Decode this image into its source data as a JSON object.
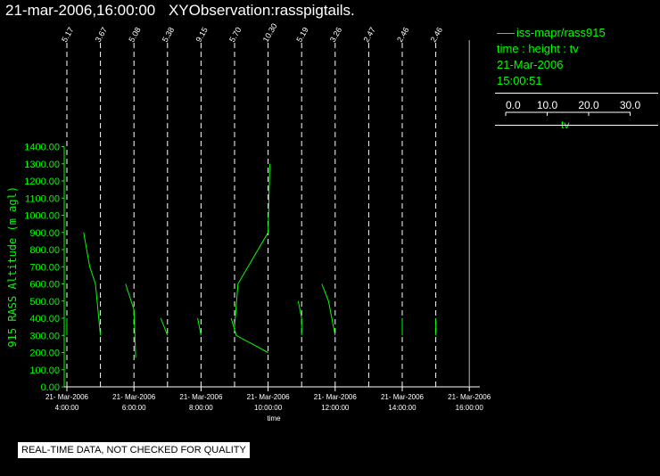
{
  "header": {
    "datetime": "21-mar-2006,16:00:00",
    "observation": "XYObservation:rasspigtails."
  },
  "legend": {
    "series_label": "iss-mapr/rass915",
    "axes": "time : height : tv",
    "date": "21-Mar-2006",
    "time": "15:00:51",
    "scale_ticks": [
      "0.0",
      "10.0",
      "20.0",
      "30.0"
    ],
    "scale_label": "tv"
  },
  "footer": {
    "quality_note": "REAL-TIME DATA, NOT CHECKED FOR QUALITY"
  },
  "colors": {
    "series": "#00ff00",
    "axis": "#ffffff",
    "background": "#000000"
  },
  "chart_data": {
    "type": "line",
    "ylabel": "915 RASS Altitude (m agl)",
    "xlabel": "time",
    "ylim": [
      0,
      1400
    ],
    "y_ticks": [
      "0.00",
      "100.00",
      "200.00",
      "300.00",
      "400.00",
      "500.00",
      "600.00",
      "700.00",
      "800.00",
      "900.00",
      "1000.00",
      "1100.00",
      "1200.00",
      "1300.00",
      "1400.00"
    ],
    "x_range_hours": [
      3,
      16
    ],
    "x_ticks": [
      {
        "hour": 4,
        "date": "21- Mar-2006",
        "time": "4:00:00"
      },
      {
        "hour": 6,
        "date": "21- Mar-2006",
        "time": "6:00:00"
      },
      {
        "hour": 8,
        "date": "21- Mar-2006",
        "time": "8:00:00"
      },
      {
        "hour": 10,
        "date": "21- Mar-2006",
        "time": "10:00:00"
      },
      {
        "hour": 12,
        "date": "21- Mar-2006",
        "time": "12:00:00"
      },
      {
        "hour": 14,
        "date": "21- Mar-2006",
        "time": "14:00:00"
      },
      {
        "hour": 16,
        "date": "21- Mar-2006",
        "time": "16:00:00"
      }
    ],
    "profiles": [
      {
        "hour": 4,
        "label": "5.17",
        "points": [
          [
            4.0,
            300
          ],
          [
            4.0,
            400
          ]
        ]
      },
      {
        "hour": 5,
        "label": "3.67",
        "points": [
          [
            4.5,
            900
          ],
          [
            4.68,
            700
          ],
          [
            4.85,
            600
          ],
          [
            5.0,
            300
          ]
        ]
      },
      {
        "hour": 6,
        "label": "5.08",
        "points": [
          [
            5.75,
            600
          ],
          [
            6.0,
            450
          ],
          [
            6.05,
            170
          ]
        ]
      },
      {
        "hour": 7,
        "label": "5.38",
        "points": [
          [
            6.8,
            400
          ],
          [
            7.0,
            300
          ]
        ]
      },
      {
        "hour": 8,
        "label": "9.15",
        "points": [
          [
            7.9,
            400
          ],
          [
            8.0,
            300
          ]
        ]
      },
      {
        "hour": 9,
        "label": "5.70",
        "points": [
          [
            8.9,
            400
          ],
          [
            9.05,
            300
          ],
          [
            10.0,
            200
          ]
        ]
      },
      {
        "hour": 10,
        "label": "10.30",
        "points": [
          [
            9.0,
            350
          ],
          [
            9.1,
            600
          ],
          [
            10.0,
            900
          ],
          [
            10.05,
            1300
          ]
        ]
      },
      {
        "hour": 11,
        "label": "5.19",
        "points": [
          [
            10.9,
            500
          ],
          [
            11.0,
            400
          ],
          [
            11.0,
            300
          ]
        ]
      },
      {
        "hour": 12,
        "label": "3.26",
        "points": [
          [
            11.6,
            600
          ],
          [
            11.8,
            500
          ],
          [
            12.0,
            300
          ]
        ]
      },
      {
        "hour": 13,
        "label": "2.47",
        "points": []
      },
      {
        "hour": 14,
        "label": "2.46",
        "points": [
          [
            14.0,
            400
          ],
          [
            14.0,
            300
          ]
        ]
      },
      {
        "hour": 15,
        "label": "2.46",
        "points": [
          [
            15.0,
            400
          ],
          [
            15.0,
            300
          ]
        ]
      },
      {
        "hour": 16,
        "label": "",
        "points": []
      }
    ]
  }
}
